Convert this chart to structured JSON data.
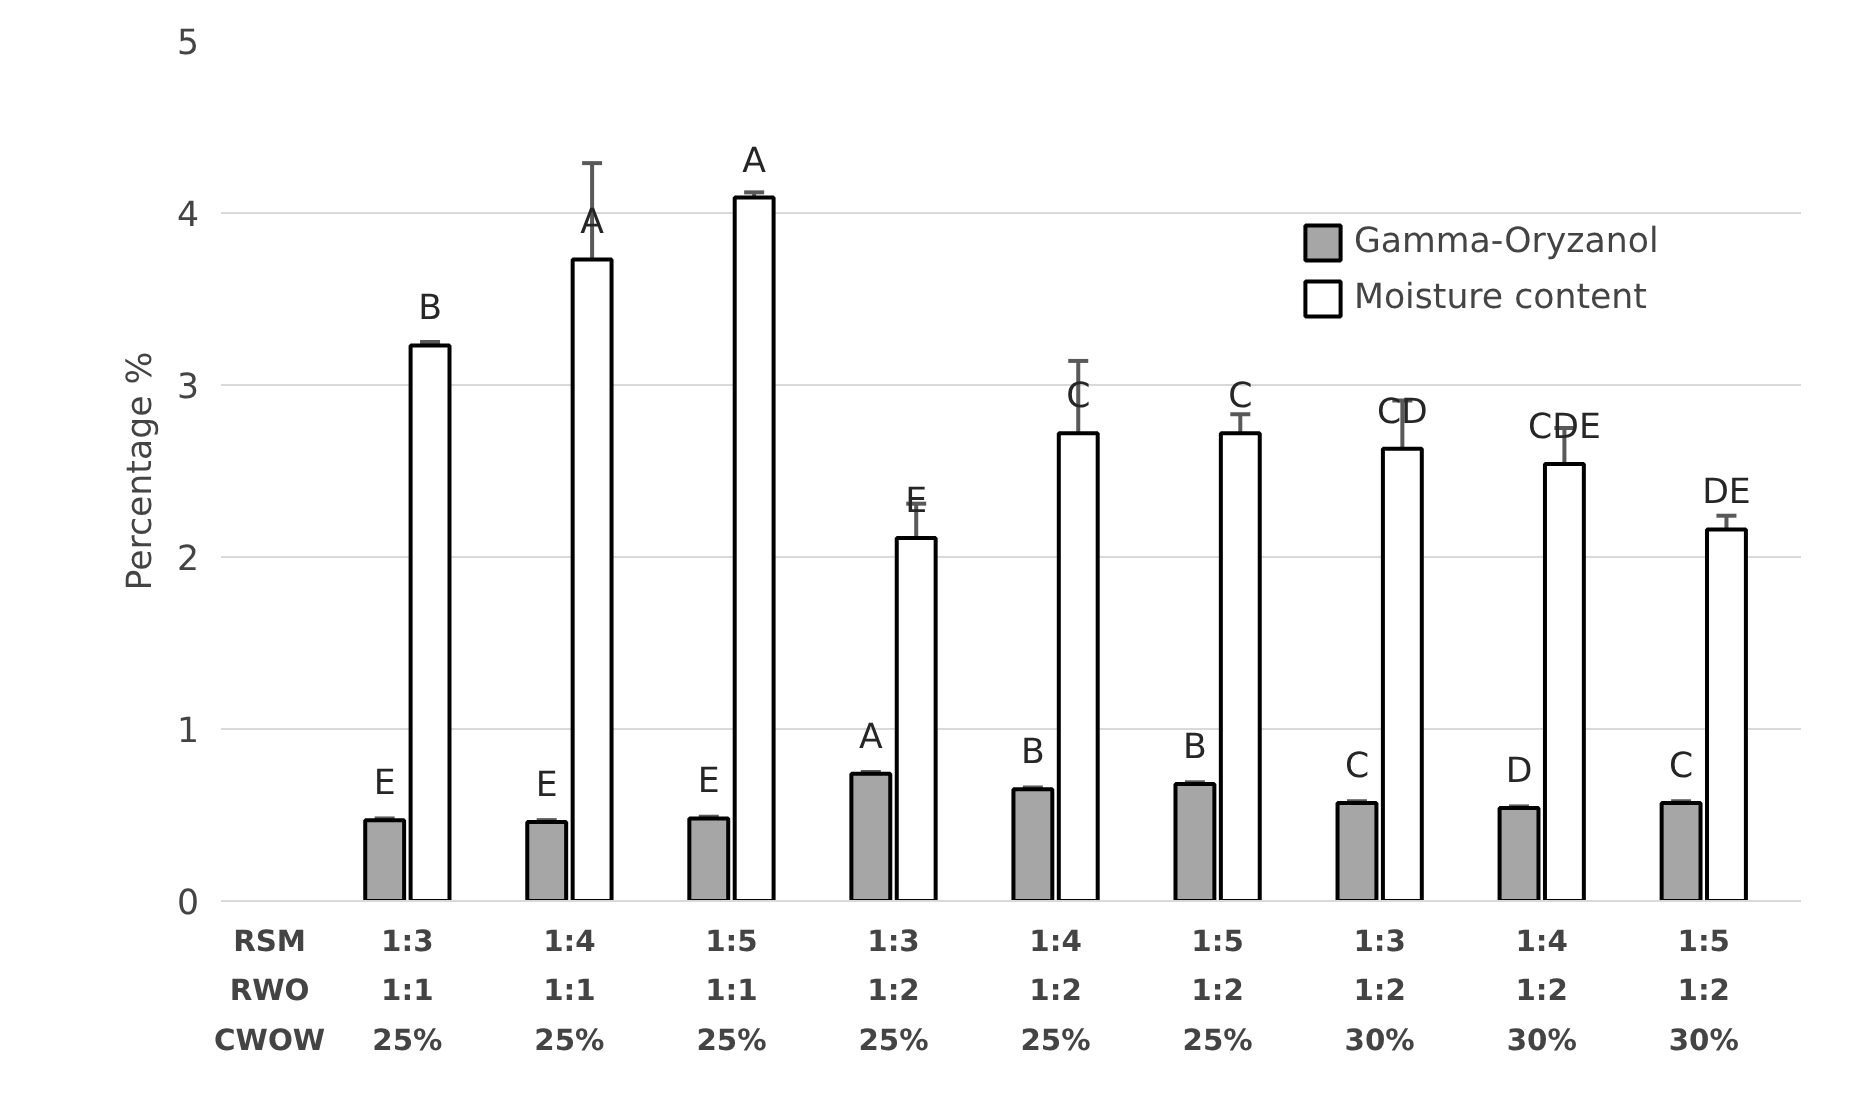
{
  "chart_data": {
    "type": "bar",
    "ylabel": "Percentage %",
    "categories": [
      "1:3\n1:1\n25%",
      "1:4\n1:1\n25%",
      "1:5\n1:1\n25%",
      "1:3\n1:2\n25%",
      "1:4\n1:2\n25%",
      "1:5\n1:2\n25%",
      "1:3\n1:2\n30%",
      "1:4\n1:2\n30%",
      "1:5\n1:2\n30%"
    ],
    "annotations": [
      "RSM",
      "RWO",
      "CWOW"
    ],
    "series": [
      {
        "name": "Gamma-Oryzanol",
        "color": "#a6a6a6",
        "values": [
          0.47,
          0.46,
          0.48,
          0.74,
          0.65,
          0.68,
          0.57,
          0.54,
          0.57
        ],
        "errors": [
          0.01,
          0.01,
          0.01,
          0.01,
          0.01,
          0.01,
          0.01,
          0.01,
          0.01
        ],
        "value_labels": [
          "E",
          "E",
          "E",
          "A",
          "B",
          "B",
          "C",
          "D",
          "C"
        ]
      },
      {
        "name": "Moisture content",
        "color": "#ffffff",
        "values": [
          3.23,
          3.73,
          4.09,
          2.11,
          2.72,
          2.72,
          2.63,
          2.54,
          2.16
        ],
        "errors": [
          0.02,
          0.56,
          0.03,
          0.2,
          0.42,
          0.11,
          0.28,
          0.21,
          0.08
        ],
        "value_labels": [
          "B",
          "A",
          "A",
          "E",
          "C",
          "C",
          "CD",
          "CDE",
          "DE"
        ]
      }
    ],
    "ylim": [
      0,
      5
    ],
    "yticks": [
      0,
      1,
      2,
      3,
      4,
      5
    ],
    "grid": "y",
    "legend": "top right"
  }
}
